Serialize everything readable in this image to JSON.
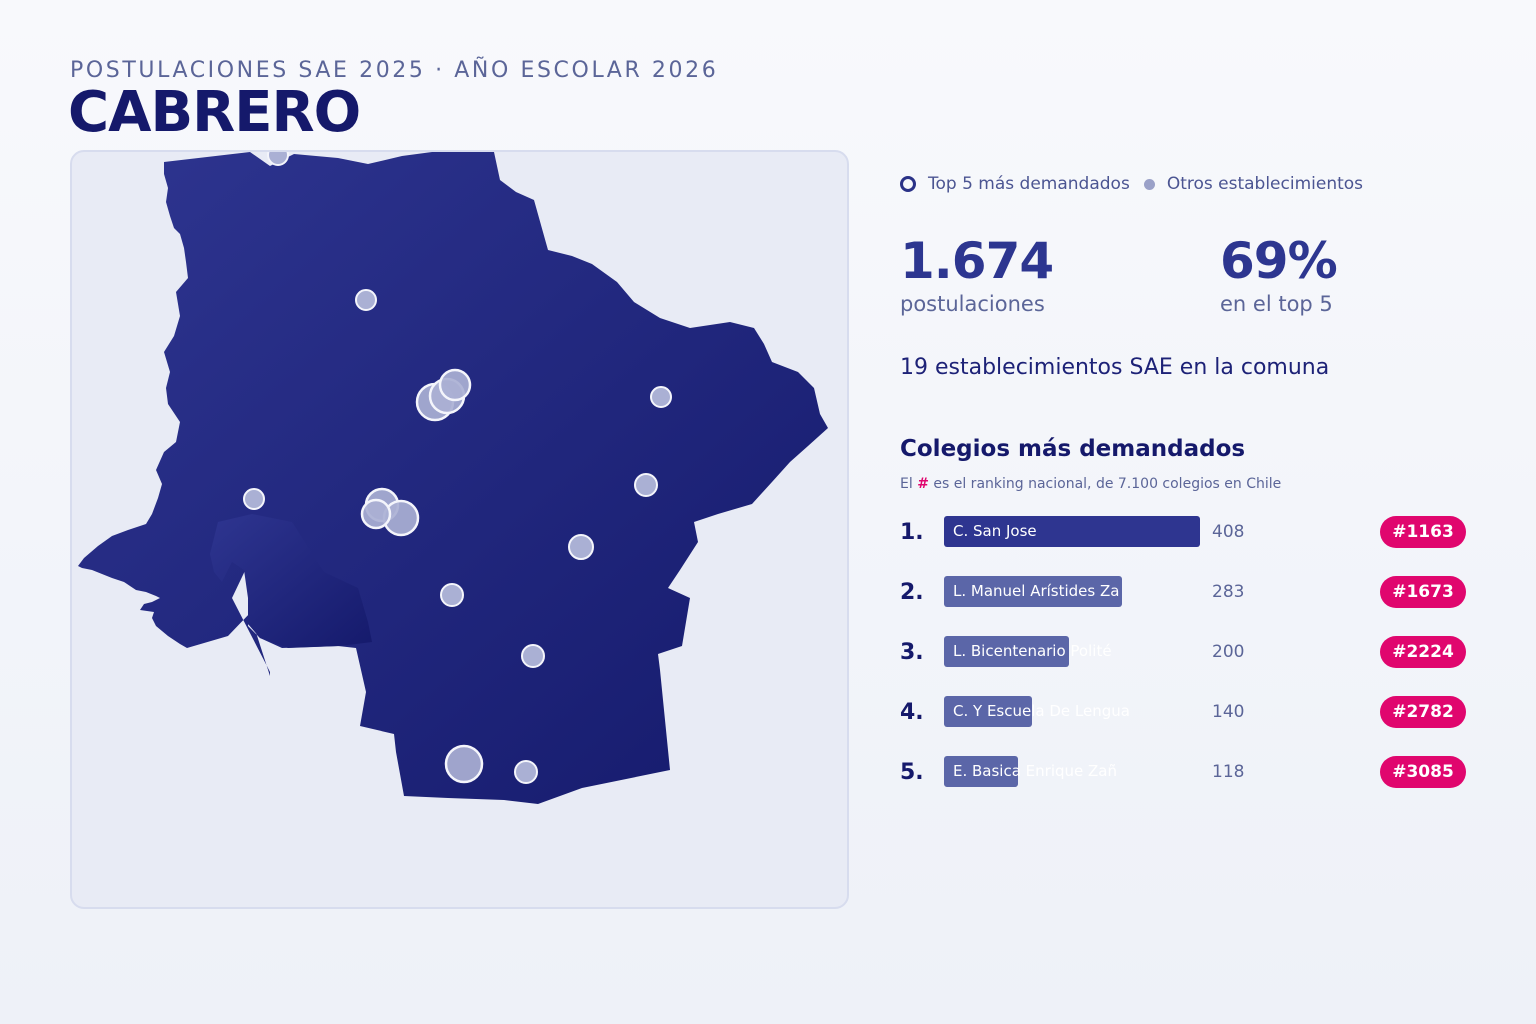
{
  "header": {
    "kicker": "POSTULACIONES SAE 2025 · AÑO ESCOLAR 2026",
    "title": "CABRERO"
  },
  "legend": {
    "top5_label": "Top 5 más demandados",
    "others_label": "Otros establecimientos"
  },
  "stats": {
    "applications_value": "1.674",
    "applications_label": "postulaciones",
    "top5_share_value": "69%",
    "top5_share_label": "en el top 5",
    "establishments_text": "19 establecimientos SAE en la comuna"
  },
  "ranking": {
    "title": "Colegios más demandados",
    "note_prefix": "El ",
    "note_hash": "#",
    "note_suffix": " es el ranking nacional, de 7.100 colegios en Chile",
    "items": [
      {
        "rank": "1.",
        "name": "C. San Jose",
        "applications": "408",
        "national_rank": "#1163"
      },
      {
        "rank": "2.",
        "name": "L. Manuel Arístides Za",
        "applications": "283",
        "national_rank": "#1673"
      },
      {
        "rank": "3.",
        "name": "L. Bicentenario Polité",
        "applications": "200",
        "national_rank": "#2224"
      },
      {
        "rank": "4.",
        "name": "C. Y Escuela De Lengua",
        "applications": "140",
        "national_rank": "#2782"
      },
      {
        "rank": "5.",
        "name": "E. Basica Enrique Zañ",
        "applications": "118",
        "national_rank": "#3085"
      }
    ]
  },
  "colors": {
    "map_fill_light": "#2e3590",
    "map_fill_dark": "#161b6e",
    "marker_fill": "#aab0d4",
    "accent_pink": "#e0066e",
    "bar_top": "#2e3590",
    "bar_other": "#5b66a8"
  }
}
